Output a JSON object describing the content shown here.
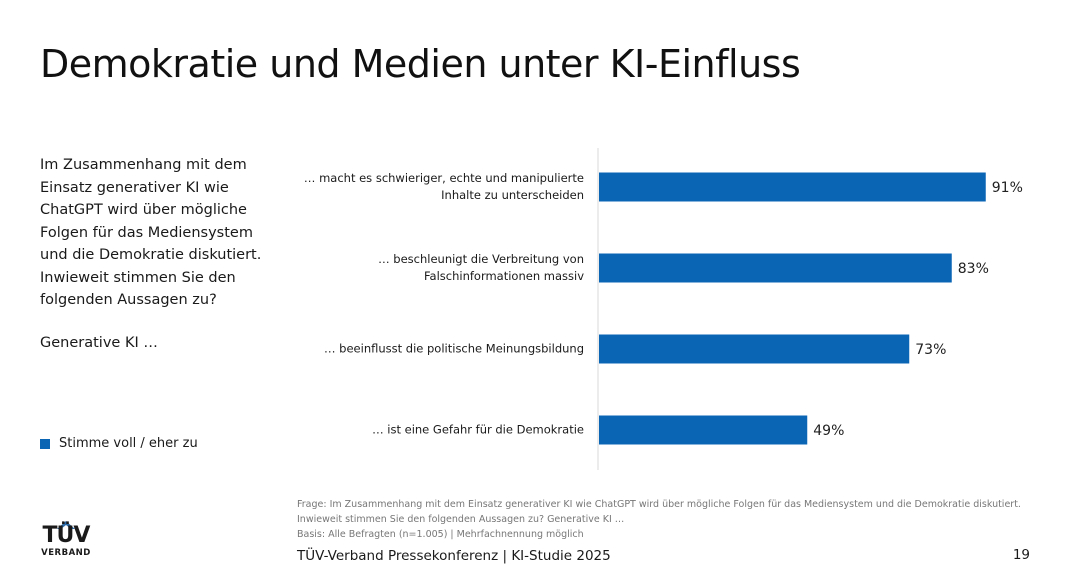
{
  "title": "Demokratie und Medien unter KI-Einfluss",
  "question": "Im Zusammenhang mit dem Einsatz generativer KI wie ChatGPT wird über mögliche Folgen für das Mediensystem und die Demokratie diskutiert. Inwieweit stimmen Sie den folgenden Aussagen zu?",
  "subquestion": "Generative KI …",
  "legend_label": "Stimme voll / eher zu",
  "colors": {
    "bar": "#0a66b5",
    "axis": "#d9d9d9"
  },
  "chart_data": {
    "type": "bar",
    "orientation": "horizontal",
    "categories": [
      "… macht es schwieriger, echte und manipulierte Inhalte zu unterscheiden",
      "… beschleunigt die Verbreitung von Falschinformationen massiv",
      "… beeinflusst die politische Meinungsbildung",
      "… ist eine Gefahr für die Demokratie"
    ],
    "values": [
      91,
      83,
      73,
      49
    ],
    "data_labels": [
      "91%",
      "83%",
      "73%",
      "49%"
    ],
    "series": [
      {
        "name": "Stimme voll / eher zu",
        "values": [
          91,
          83,
          73,
          49
        ]
      }
    ],
    "xlim": [
      0,
      100
    ],
    "grid": false,
    "legend": "bottom-left"
  },
  "footnote": {
    "line1": "Frage: Im Zusammenhang mit dem Einsatz generativer KI wie ChatGPT wird über mögliche Folgen für das Mediensystem und die Demokratie diskutiert.",
    "line2": "Inwieweit stimmen Sie den folgenden Aussagen zu? Generative KI …",
    "line3": "Basis: Alle Befragten (n=1.005) | Mehrfachnennung möglich"
  },
  "footer": "TÜV-Verband Pressekonferenz | KI-Studie 2025",
  "page_number": "19",
  "logo": {
    "top": "TÜV",
    "bottom": "VERBAND"
  }
}
